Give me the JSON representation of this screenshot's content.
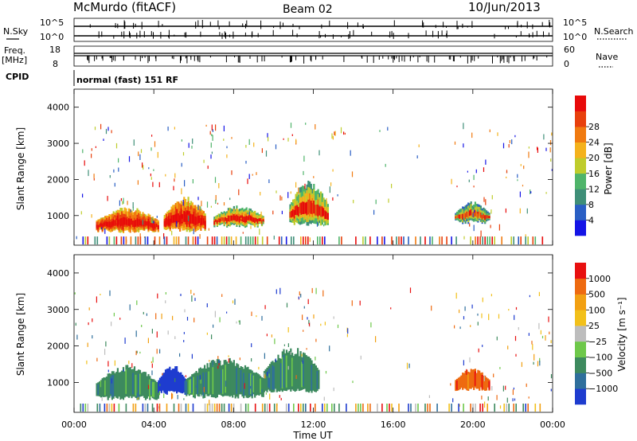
{
  "header": {
    "station": "McMurdo (fitACF)",
    "beam": "Beam 02",
    "date": "10/Jun/2013"
  },
  "status_panels": {
    "nsky_label": "N.Sky",
    "nsearch_label": "N.Search",
    "nsky_ticks": [
      "10^5",
      "10^0"
    ],
    "nsearch_ticks": [
      "10^5",
      "10^0"
    ],
    "freq_label_top": "Freq.",
    "freq_label_unit": "[MHz]",
    "freq_ticks": [
      "18",
      "8"
    ],
    "nave_label": "Nave",
    "nave_ticks": [
      "60",
      "0"
    ],
    "cpid_label": "CPID",
    "cpid_text": "normal (fast) 151 RF"
  },
  "chart_data": [
    {
      "type": "heatmap",
      "name": "power",
      "ylabel": "Slant Range [km]",
      "ylim": [
        180,
        4500
      ],
      "y_ticks": [
        1000,
        2000,
        3000,
        4000
      ],
      "xlim": [
        0,
        24
      ],
      "x_tick_labels": [
        "00:00",
        "04:00",
        "08:00",
        "12:00",
        "16:00",
        "20:00",
        "00:00"
      ],
      "colorbar": {
        "label": "Power [dB]",
        "ticks": [
          "4",
          "8",
          "12",
          "16",
          "20",
          "24",
          "28"
        ],
        "colors": [
          "#1414e6",
          "#2a5fc4",
          "#3f8f78",
          "#4fb46a",
          "#bfcc2c",
          "#f4b21c",
          "#f07a10",
          "#e8400c",
          "#e80a0a"
        ]
      },
      "regions": [
        {
          "t0": 1.1,
          "t1": 4.2,
          "r0": 550,
          "r1": 1250,
          "level": 5
        },
        {
          "t0": 4.5,
          "t1": 6.6,
          "r0": 580,
          "r1": 1550,
          "level": 5
        },
        {
          "t0": 7.0,
          "t1": 9.5,
          "r0": 700,
          "r1": 1300,
          "level": 3
        },
        {
          "t0": 10.8,
          "t1": 12.7,
          "r0": 750,
          "r1": 2000,
          "level": 3
        },
        {
          "t0": 19.1,
          "t1": 20.8,
          "r0": 800,
          "r1": 1400,
          "level": 2
        }
      ]
    },
    {
      "type": "heatmap",
      "name": "velocity",
      "ylabel": "Slant Range [km]",
      "ylim": [
        180,
        4500
      ],
      "y_ticks": [
        1000,
        2000,
        3000,
        4000
      ],
      "xlim": [
        0,
        24
      ],
      "x_tick_labels": [
        "00:00",
        "04:00",
        "08:00",
        "12:00",
        "16:00",
        "20:00",
        "00:00"
      ],
      "xlabel": "Time UT",
      "colorbar": {
        "label": "Velocity [m s⁻¹]",
        "ticks": [
          "1000",
          "500",
          "100",
          "25",
          "−25",
          "−100",
          "−500",
          "−1000"
        ],
        "colors": [
          "#1e3ccf",
          "#2f6f9c",
          "#3d8a5e",
          "#6ec84a",
          "#bdbdbd",
          "#f2c01a",
          "#f2a012",
          "#ee6a10",
          "#e81010"
        ]
      },
      "regions": [
        {
          "t0": 1.1,
          "t1": 4.2,
          "r0": 550,
          "r1": 1500,
          "level": 2
        },
        {
          "t0": 4.2,
          "t1": 5.6,
          "r0": 700,
          "r1": 1500,
          "level": 0
        },
        {
          "t0": 5.6,
          "t1": 9.5,
          "r0": 600,
          "r1": 1700,
          "level": 2
        },
        {
          "t0": 9.5,
          "t1": 12.3,
          "r0": 750,
          "r1": 2000,
          "level": 2
        },
        {
          "t0": 19.1,
          "t1": 20.8,
          "r0": 800,
          "r1": 1400,
          "level": 7
        }
      ]
    }
  ]
}
